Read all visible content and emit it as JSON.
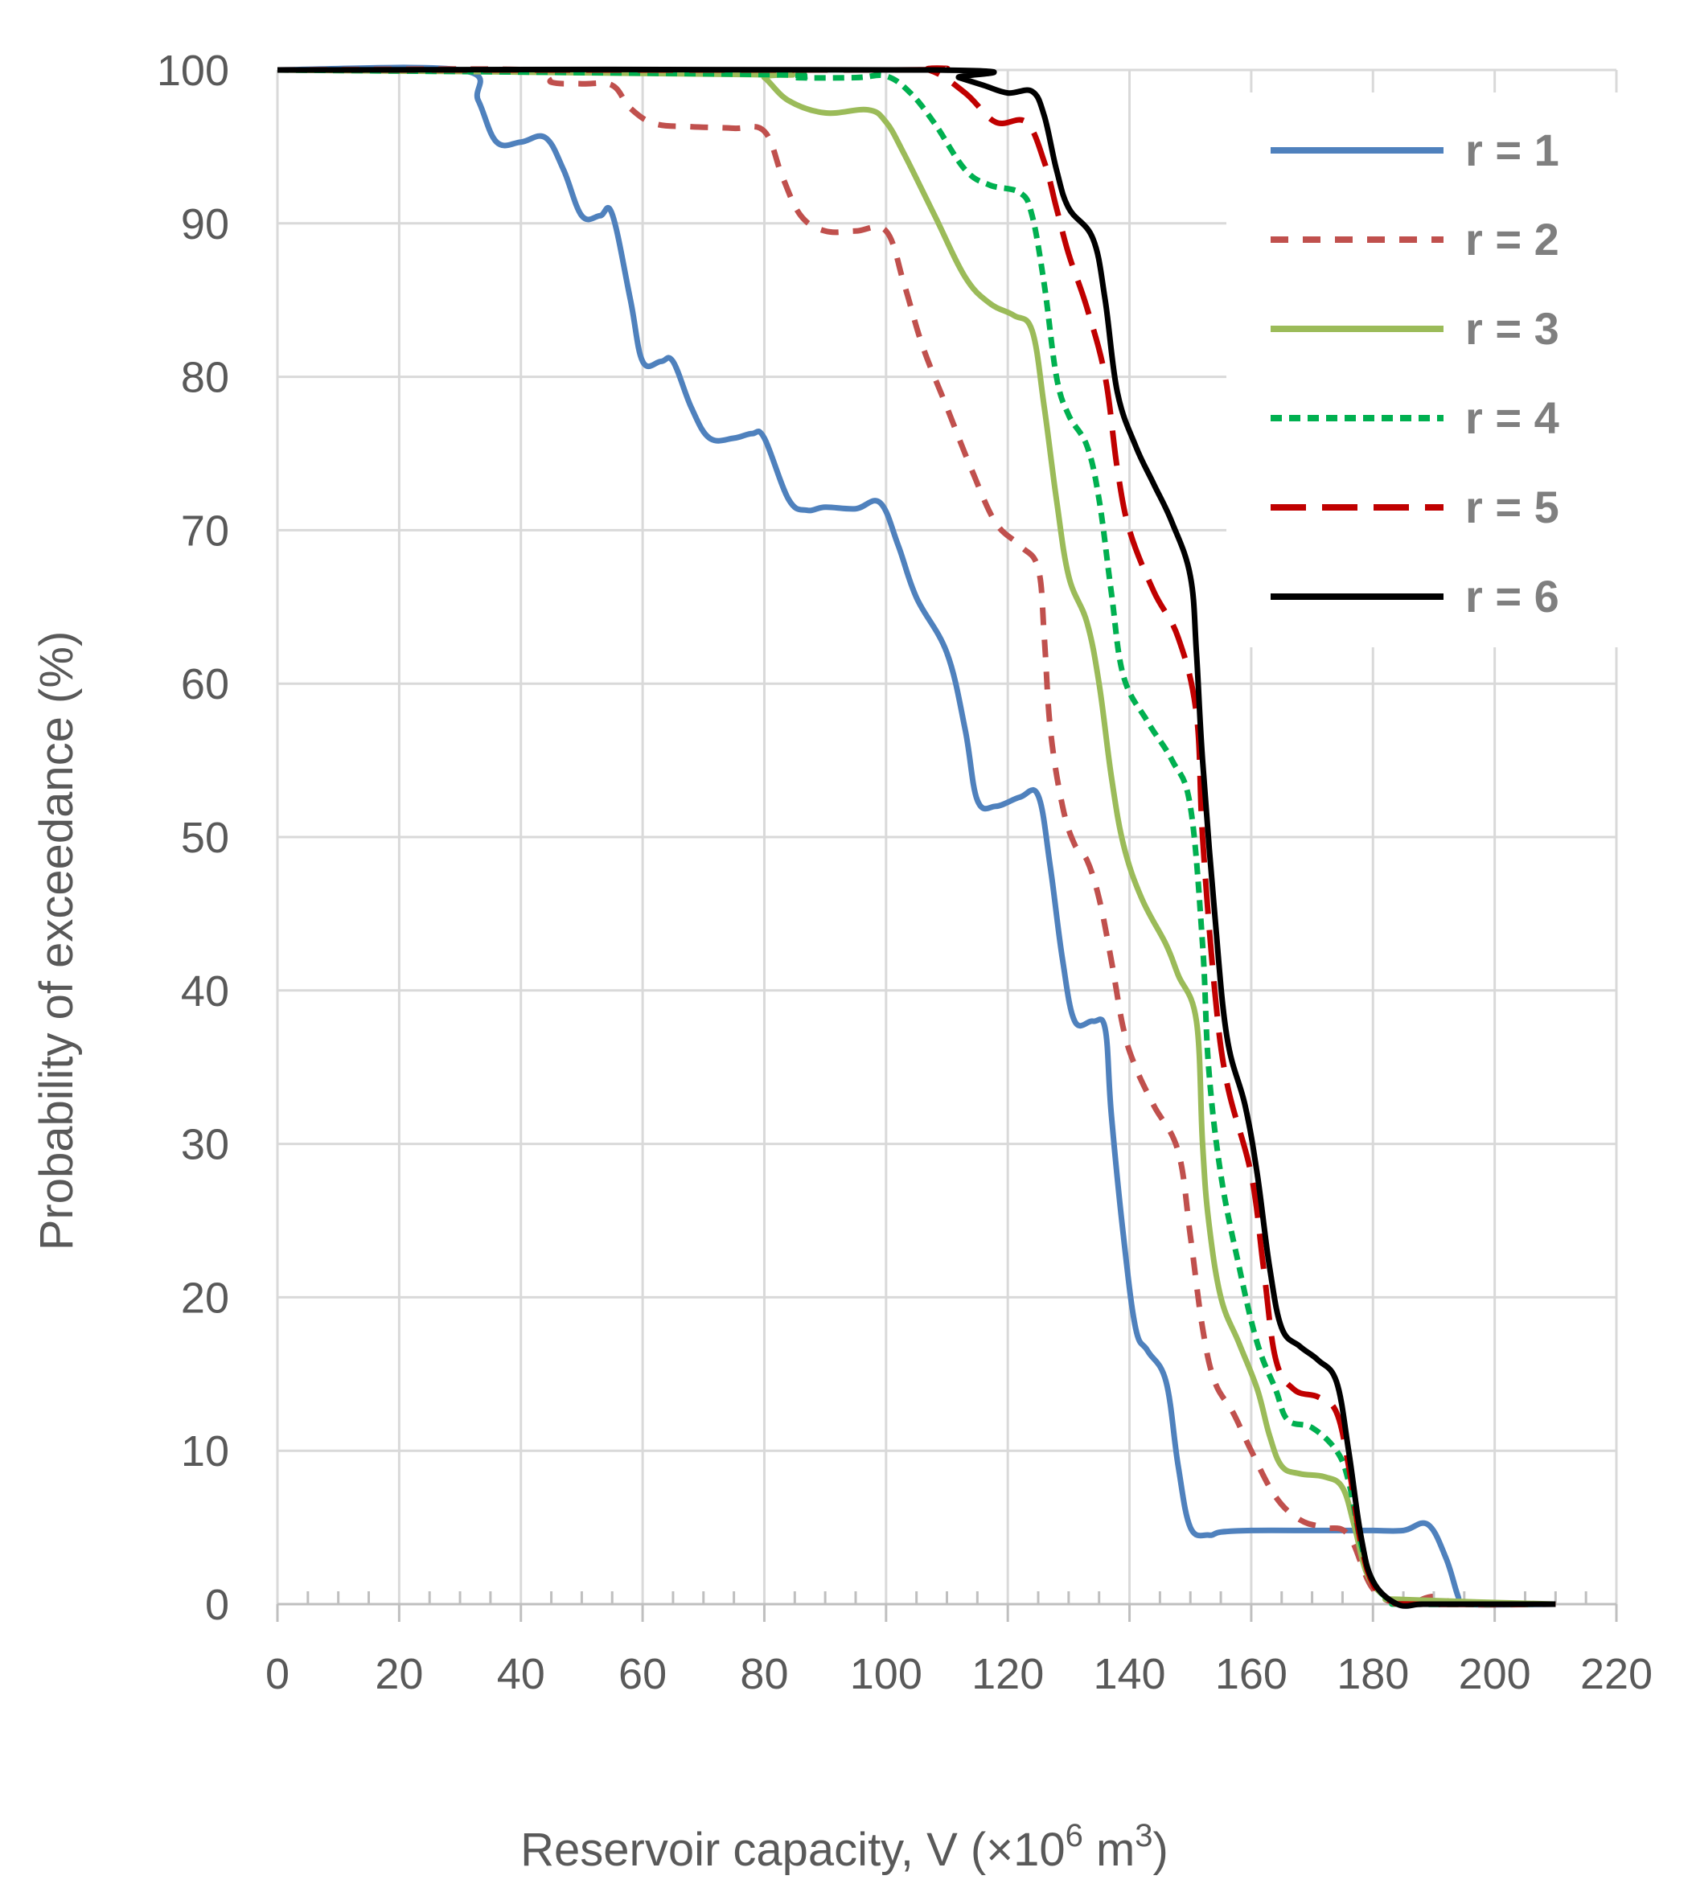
{
  "chart_data": {
    "type": "line",
    "xlabel": "Reservoir capacity, V (×10",
    "xlabel_sup1": "6",
    "xlabel_mid": "  m",
    "xlabel_sup2": "3",
    "xlabel_end": ")",
    "ylabel": "Probability of exceedance (%)",
    "xlim": [
      0,
      220
    ],
    "ylim": [
      0,
      100
    ],
    "xticks": [
      0,
      20,
      40,
      60,
      80,
      100,
      120,
      140,
      160,
      180,
      200,
      220
    ],
    "yticks": [
      0,
      10,
      20,
      30,
      40,
      50,
      60,
      70,
      80,
      90,
      100
    ],
    "grid": true,
    "legend_position": "top-right",
    "series": [
      {
        "name": "r = 1",
        "color": "#4f81bd",
        "dash": "solid",
        "points": [
          [
            0,
            100
          ],
          [
            30,
            100
          ],
          [
            33,
            98
          ],
          [
            36,
            95.3
          ],
          [
            40,
            95.3
          ],
          [
            44,
            95.6
          ],
          [
            47,
            93.5
          ],
          [
            50,
            90.5
          ],
          [
            53,
            90.5
          ],
          [
            55,
            90.6
          ],
          [
            58,
            85
          ],
          [
            60,
            81
          ],
          [
            63,
            81
          ],
          [
            65,
            81
          ],
          [
            68,
            78
          ],
          [
            71,
            76
          ],
          [
            75,
            76
          ],
          [
            78,
            76.3
          ],
          [
            80,
            76
          ],
          [
            84,
            72
          ],
          [
            87,
            71.3
          ],
          [
            90,
            71.5
          ],
          [
            95,
            71.4
          ],
          [
            99,
            71.8
          ],
          [
            102,
            69
          ],
          [
            105,
            65.6
          ],
          [
            110,
            62
          ],
          [
            113,
            57
          ],
          [
            115,
            52.4
          ],
          [
            118,
            52
          ],
          [
            122,
            52.6
          ],
          [
            125,
            52.7
          ],
          [
            127,
            48
          ],
          [
            129,
            42
          ],
          [
            131,
            38
          ],
          [
            134,
            38
          ],
          [
            136,
            37.5
          ],
          [
            137,
            32
          ],
          [
            139,
            24
          ],
          [
            141,
            18
          ],
          [
            143,
            16.5
          ],
          [
            146,
            14.5
          ],
          [
            148,
            9
          ],
          [
            150,
            5
          ],
          [
            153,
            4.5
          ],
          [
            155,
            4.7
          ],
          [
            160,
            4.8
          ],
          [
            170,
            4.8
          ],
          [
            175,
            4.8
          ],
          [
            180,
            4.8
          ],
          [
            185,
            4.8
          ],
          [
            189,
            5.2
          ],
          [
            192,
            3
          ],
          [
            194,
            0.5
          ],
          [
            195,
            0
          ],
          [
            210,
            0
          ]
        ]
      },
      {
        "name": "r = 2",
        "color": "#c0504d",
        "dash": "dashed",
        "points": [
          [
            0,
            100
          ],
          [
            42,
            100
          ],
          [
            45,
            99.2
          ],
          [
            50,
            99.1
          ],
          [
            55,
            99
          ],
          [
            58,
            97.5
          ],
          [
            62,
            96.5
          ],
          [
            68,
            96.3
          ],
          [
            75,
            96.2
          ],
          [
            80,
            96
          ],
          [
            83,
            93
          ],
          [
            86,
            90.5
          ],
          [
            90,
            89.5
          ],
          [
            95,
            89.5
          ],
          [
            100,
            89.5
          ],
          [
            103,
            86
          ],
          [
            106,
            82
          ],
          [
            110,
            78
          ],
          [
            114,
            74
          ],
          [
            118,
            70.5
          ],
          [
            122,
            69
          ],
          [
            125,
            67.5
          ],
          [
            126,
            63
          ],
          [
            127,
            57
          ],
          [
            129,
            52
          ],
          [
            131,
            49.5
          ],
          [
            133,
            48.5
          ],
          [
            135,
            46
          ],
          [
            137,
            42
          ],
          [
            139,
            37.5
          ],
          [
            141,
            35
          ],
          [
            144,
            32.5
          ],
          [
            148,
            29.5
          ],
          [
            150,
            24
          ],
          [
            152,
            18
          ],
          [
            154,
            14.5
          ],
          [
            157,
            12.5
          ],
          [
            160,
            10
          ],
          [
            164,
            7
          ],
          [
            168,
            5.5
          ],
          [
            172,
            5
          ],
          [
            176,
            4.5
          ],
          [
            180,
            1
          ],
          [
            185,
            0
          ],
          [
            190,
            0.5
          ],
          [
            195,
            0
          ],
          [
            210,
            0
          ]
        ]
      },
      {
        "name": "r = 3",
        "color": "#9bbb59",
        "dash": "solid",
        "points": [
          [
            0,
            100
          ],
          [
            78,
            99.7
          ],
          [
            80,
            99.5
          ],
          [
            84,
            98
          ],
          [
            90,
            97.2
          ],
          [
            97,
            97.4
          ],
          [
            100,
            96.6
          ],
          [
            103,
            94.5
          ],
          [
            108,
            90.5
          ],
          [
            113,
            86.5
          ],
          [
            117,
            84.8
          ],
          [
            121,
            84
          ],
          [
            124,
            83
          ],
          [
            126,
            78
          ],
          [
            128,
            72
          ],
          [
            130,
            67
          ],
          [
            133,
            64
          ],
          [
            135,
            60
          ],
          [
            137,
            54
          ],
          [
            139,
            49.5
          ],
          [
            142,
            46
          ],
          [
            146,
            43
          ],
          [
            148,
            41
          ],
          [
            151,
            38
          ],
          [
            152,
            30
          ],
          [
            153,
            25
          ],
          [
            155,
            20
          ],
          [
            158,
            17
          ],
          [
            161,
            14
          ],
          [
            163,
            11
          ],
          [
            165,
            9
          ],
          [
            168,
            8.5
          ],
          [
            172,
            8.3
          ],
          [
            175,
            7.6
          ],
          [
            177,
            5
          ],
          [
            179,
            2
          ],
          [
            182,
            0.5
          ],
          [
            185,
            0.3
          ],
          [
            210,
            0
          ]
        ]
      },
      {
        "name": "r = 4",
        "color": "#00b050",
        "dash": "dotted",
        "points": [
          [
            0,
            100
          ],
          [
            80,
            99.7
          ],
          [
            85,
            99.5
          ],
          [
            95,
            99.5
          ],
          [
            100,
            99.6
          ],
          [
            104,
            98.5
          ],
          [
            108,
            96.5
          ],
          [
            113,
            93.5
          ],
          [
            117,
            92.5
          ],
          [
            122,
            92
          ],
          [
            124,
            90.5
          ],
          [
            126,
            86
          ],
          [
            128,
            80
          ],
          [
            130,
            77.5
          ],
          [
            133,
            75.5
          ],
          [
            135,
            72
          ],
          [
            137,
            66
          ],
          [
            139,
            60.5
          ],
          [
            143,
            57.5
          ],
          [
            147,
            55
          ],
          [
            150,
            52
          ],
          [
            152,
            43
          ],
          [
            153,
            35
          ],
          [
            155,
            28
          ],
          [
            158,
            22
          ],
          [
            161,
            17
          ],
          [
            164,
            14
          ],
          [
            166,
            12
          ],
          [
            170,
            11.5
          ],
          [
            174,
            10
          ],
          [
            176,
            8
          ],
          [
            178,
            4
          ],
          [
            180,
            1.5
          ],
          [
            183,
            0.2
          ],
          [
            186,
            0
          ],
          [
            210,
            0
          ]
        ]
      },
      {
        "name": "r = 5",
        "color": "#c00000",
        "dash": "longdash",
        "points": [
          [
            0,
            100
          ],
          [
            100,
            100
          ],
          [
            107,
            100
          ],
          [
            113,
            98.5
          ],
          [
            118,
            96.6
          ],
          [
            123,
            96.6
          ],
          [
            126,
            94
          ],
          [
            128,
            91
          ],
          [
            130,
            88
          ],
          [
            133,
            84.5
          ],
          [
            136,
            80
          ],
          [
            138,
            74
          ],
          [
            140,
            70
          ],
          [
            144,
            66
          ],
          [
            148,
            63
          ],
          [
            151,
            58
          ],
          [
            152,
            50
          ],
          [
            154,
            40
          ],
          [
            156,
            34
          ],
          [
            160,
            28
          ],
          [
            162,
            22
          ],
          [
            164,
            16
          ],
          [
            167,
            14
          ],
          [
            171,
            13.5
          ],
          [
            174,
            12.5
          ],
          [
            176,
            9
          ],
          [
            178,
            4
          ],
          [
            180,
            1.3
          ],
          [
            183,
            0.2
          ],
          [
            187,
            0
          ],
          [
            210,
            0
          ]
        ]
      },
      {
        "name": "r = 6",
        "color": "#000000",
        "dash": "solid",
        "points": [
          [
            0,
            100
          ],
          [
            108,
            100
          ],
          [
            112,
            99.5
          ],
          [
            116,
            99
          ],
          [
            120,
            98.5
          ],
          [
            124,
            98.6
          ],
          [
            126,
            97
          ],
          [
            128,
            93.5
          ],
          [
            130,
            91
          ],
          [
            134,
            89
          ],
          [
            136,
            85
          ],
          [
            138,
            79
          ],
          [
            141,
            75.5
          ],
          [
            144,
            73
          ],
          [
            147,
            70.5
          ],
          [
            150,
            67
          ],
          [
            151,
            62
          ],
          [
            152,
            55
          ],
          [
            154,
            45
          ],
          [
            156,
            37
          ],
          [
            159,
            32.5
          ],
          [
            161,
            28
          ],
          [
            163,
            22
          ],
          [
            165,
            18
          ],
          [
            168,
            16.8
          ],
          [
            171,
            15.9
          ],
          [
            174,
            14.5
          ],
          [
            176,
            10
          ],
          [
            178,
            4.5
          ],
          [
            180,
            1.5
          ],
          [
            184,
            0
          ],
          [
            188,
            0
          ],
          [
            193,
            0
          ],
          [
            210,
            0
          ]
        ]
      }
    ]
  }
}
